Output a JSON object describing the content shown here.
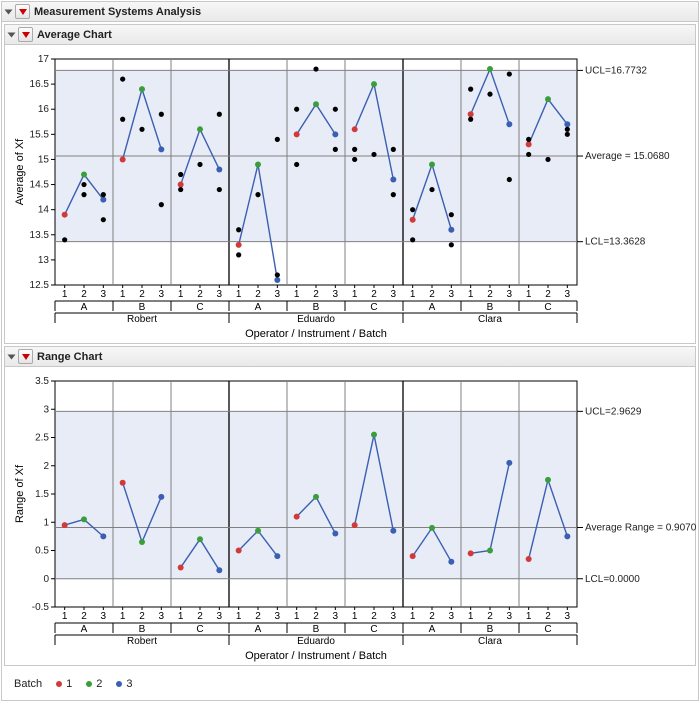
{
  "title": "Measurement Systems Analysis",
  "font": {
    "family": "Arial",
    "title_size": 12,
    "axis_label_size": 11,
    "tick_size": 10
  },
  "colors": {
    "panel_border": "#c8c8c8",
    "plot_bg": "#e8ecf6",
    "outer_bg": "#ffffff",
    "grid": "#808080",
    "axis": "#000000",
    "line": "#3b5fb3",
    "point_black": "#000000",
    "ref_line": "#808080",
    "batch1": "#d23a3a",
    "batch2": "#3a9e3a",
    "batch3": "#3b5fb3"
  },
  "operators": [
    "Robert",
    "Eduardo",
    "Clara"
  ],
  "instruments": [
    "A",
    "B",
    "C"
  ],
  "batches": [
    "1",
    "2",
    "3"
  ],
  "xaxis_title": "Operator / Instrument / Batch",
  "legend": {
    "label": "Batch",
    "items": [
      {
        "label": "1",
        "color": "#d23a3a"
      },
      {
        "label": "2",
        "color": "#3a9e3a"
      },
      {
        "label": "3",
        "color": "#3b5fb3"
      }
    ]
  },
  "average_chart": {
    "title": "Average Chart",
    "ylabel": "Average of Xf",
    "ylim": [
      12.5,
      17
    ],
    "yticks": [
      12.5,
      13,
      13.5,
      14,
      14.5,
      15,
      15.5,
      16,
      16.5,
      17
    ],
    "ucl": {
      "value": 16.7732,
      "label": "UCL=16.7732"
    },
    "lcl": {
      "value": 13.3628,
      "label": "LCL=13.3628"
    },
    "mean": {
      "value": 15.068,
      "label": "Average = 15.0680"
    },
    "line_points": [
      [
        13.9,
        14.7,
        14.2
      ],
      [
        15.0,
        16.4,
        15.2
      ],
      [
        14.5,
        15.6,
        14.8
      ],
      [
        13.3,
        14.9,
        12.6
      ],
      [
        15.5,
        16.1,
        15.5
      ],
      [
        15.6,
        16.5,
        14.6
      ],
      [
        13.8,
        14.9,
        13.6
      ],
      [
        15.9,
        16.8,
        15.7
      ],
      [
        15.3,
        16.2,
        15.7
      ]
    ],
    "extra_points": [
      [
        [
          1,
          13.4
        ],
        [
          2,
          14.3
        ],
        [
          2,
          14.5
        ],
        [
          3,
          13.8
        ],
        [
          3,
          14.3
        ]
      ],
      [
        [
          1,
          15.8
        ],
        [
          1,
          16.6
        ],
        [
          2,
          15.6
        ],
        [
          3,
          14.1
        ],
        [
          3,
          15.9
        ]
      ],
      [
        [
          1,
          14.4
        ],
        [
          1,
          14.7
        ],
        [
          2,
          14.9
        ],
        [
          3,
          14.4
        ],
        [
          3,
          15.9
        ]
      ],
      [
        [
          1,
          13.1
        ],
        [
          1,
          13.6
        ],
        [
          2,
          14.3
        ],
        [
          3,
          12.7
        ],
        [
          3,
          15.4
        ]
      ],
      [
        [
          1,
          14.9
        ],
        [
          1,
          16.0
        ],
        [
          2,
          16.8
        ],
        [
          3,
          15.2
        ],
        [
          3,
          16.0
        ]
      ],
      [
        [
          1,
          15.2
        ],
        [
          1,
          15.0
        ],
        [
          2,
          15.1
        ],
        [
          3,
          15.2
        ],
        [
          3,
          14.3
        ]
      ],
      [
        [
          1,
          13.4
        ],
        [
          1,
          14.0
        ],
        [
          2,
          14.4
        ],
        [
          3,
          13.3
        ],
        [
          3,
          13.9
        ]
      ],
      [
        [
          1,
          15.8
        ],
        [
          1,
          16.4
        ],
        [
          2,
          16.3
        ],
        [
          3,
          14.6
        ],
        [
          3,
          16.7
        ]
      ],
      [
        [
          1,
          15.4
        ],
        [
          1,
          15.1
        ],
        [
          2,
          15.0
        ],
        [
          3,
          15.5
        ],
        [
          3,
          15.6
        ]
      ]
    ]
  },
  "range_chart": {
    "title": "Range Chart",
    "ylabel": "Range of Xf",
    "ylim": [
      -0.5,
      3.5
    ],
    "yticks": [
      -0.5,
      0,
      0.5,
      1,
      1.5,
      2,
      2.5,
      3,
      3.5
    ],
    "ucl": {
      "value": 2.9629,
      "label": "UCL=2.9629"
    },
    "lcl": {
      "value": 0.0,
      "label": "LCL=0.0000"
    },
    "mean": {
      "value": 0.907,
      "label": "Average Range = 0.9070"
    },
    "line_points": [
      [
        0.95,
        1.05,
        0.75
      ],
      [
        1.7,
        0.65,
        1.45
      ],
      [
        0.2,
        0.7,
        0.15
      ],
      [
        0.5,
        0.85,
        0.4
      ],
      [
        1.1,
        1.45,
        0.8
      ],
      [
        0.95,
        2.55,
        0.85
      ],
      [
        0.4,
        0.9,
        0.3
      ],
      [
        0.45,
        0.5,
        2.05
      ],
      [
        0.35,
        1.75,
        0.75
      ]
    ]
  }
}
